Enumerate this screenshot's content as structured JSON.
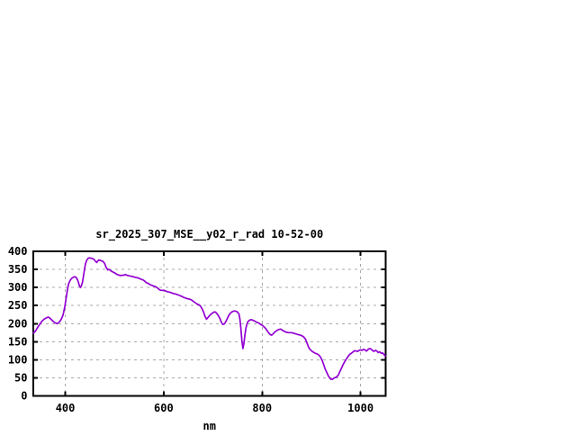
{
  "window": {
    "background": "#ffffff"
  },
  "chart_data": {
    "type": "line",
    "title": "sr_2025_307_MSE__y02_r_rad 10-52-00",
    "xlabel": "nm",
    "ylabel": "",
    "xlim": [
      335,
      1051
    ],
    "ylim": [
      0,
      400
    ],
    "xticks": [
      400,
      600,
      800,
      1000
    ],
    "yticks": [
      0,
      50,
      100,
      150,
      200,
      250,
      300,
      350,
      400
    ],
    "grid": true,
    "legend_position": "none",
    "colors": {
      "line": "#9400d3",
      "grid": "#a8a8a8",
      "axis": "#000000",
      "text": "#000000",
      "background": "#ffffff"
    },
    "series": [
      {
        "points": [
          [
            335,
            174
          ],
          [
            338,
            177
          ],
          [
            341,
            183
          ],
          [
            344,
            190
          ],
          [
            347,
            196
          ],
          [
            350,
            202
          ],
          [
            353,
            207
          ],
          [
            356,
            211
          ],
          [
            359,
            214
          ],
          [
            362,
            216
          ],
          [
            365,
            218
          ],
          [
            368,
            216
          ],
          [
            371,
            212
          ],
          [
            374,
            208
          ],
          [
            377,
            204
          ],
          [
            380,
            202
          ],
          [
            383,
            200
          ],
          [
            386,
            202
          ],
          [
            389,
            206
          ],
          [
            392,
            213
          ],
          [
            395,
            222
          ],
          [
            397,
            233
          ],
          [
            399,
            247
          ],
          [
            401,
            264
          ],
          [
            403,
            282
          ],
          [
            405,
            299
          ],
          [
            407,
            311
          ],
          [
            410,
            320
          ],
          [
            413,
            325
          ],
          [
            416,
            328
          ],
          [
            419,
            330
          ],
          [
            422,
            328
          ],
          [
            425,
            321
          ],
          [
            427,
            313
          ],
          [
            429,
            303
          ],
          [
            431,
            300
          ],
          [
            433,
            306
          ],
          [
            435,
            315
          ],
          [
            437,
            333
          ],
          [
            439,
            350
          ],
          [
            441,
            365
          ],
          [
            443,
            374
          ],
          [
            445,
            378
          ],
          [
            447,
            381
          ],
          [
            449,
            382
          ],
          [
            451,
            381
          ],
          [
            453,
            381
          ],
          [
            455,
            380
          ],
          [
            457,
            379
          ],
          [
            459,
            377
          ],
          [
            461,
            373
          ],
          [
            464,
            369
          ],
          [
            466,
            373
          ],
          [
            468,
            376
          ],
          [
            471,
            375
          ],
          [
            474,
            373
          ],
          [
            477,
            372
          ],
          [
            480,
            366
          ],
          [
            483,
            356
          ],
          [
            486,
            349
          ],
          [
            489,
            350
          ],
          [
            492,
            347
          ],
          [
            495,
            344
          ],
          [
            498,
            342
          ],
          [
            501,
            340
          ],
          [
            504,
            337
          ],
          [
            507,
            335
          ],
          [
            510,
            334
          ],
          [
            513,
            333
          ],
          [
            516,
            334
          ],
          [
            519,
            334
          ],
          [
            522,
            336
          ],
          [
            525,
            334
          ],
          [
            528,
            333
          ],
          [
            531,
            332
          ],
          [
            534,
            331
          ],
          [
            537,
            330
          ],
          [
            540,
            329
          ],
          [
            543,
            328
          ],
          [
            546,
            327
          ],
          [
            549,
            326
          ],
          [
            552,
            324
          ],
          [
            555,
            322
          ],
          [
            558,
            321
          ],
          [
            561,
            318
          ],
          [
            564,
            314
          ],
          [
            567,
            312
          ],
          [
            570,
            310
          ],
          [
            573,
            307
          ],
          [
            576,
            306
          ],
          [
            579,
            304
          ],
          [
            582,
            303
          ],
          [
            585,
            301
          ],
          [
            588,
            298
          ],
          [
            591,
            294
          ],
          [
            594,
            292
          ],
          [
            597,
            292
          ],
          [
            600,
            292
          ],
          [
            604,
            290
          ],
          [
            608,
            288
          ],
          [
            612,
            287
          ],
          [
            616,
            285
          ],
          [
            620,
            283
          ],
          [
            624,
            282
          ],
          [
            628,
            280
          ],
          [
            632,
            278
          ],
          [
            636,
            276
          ],
          [
            640,
            273
          ],
          [
            644,
            271
          ],
          [
            648,
            269
          ],
          [
            652,
            268
          ],
          [
            656,
            266
          ],
          [
            660,
            262
          ],
          [
            664,
            258
          ],
          [
            668,
            254
          ],
          [
            672,
            252
          ],
          [
            675,
            248
          ],
          [
            678,
            241
          ],
          [
            681,
            232
          ],
          [
            684,
            220
          ],
          [
            687,
            212
          ],
          [
            690,
            217
          ],
          [
            693,
            222
          ],
          [
            696,
            226
          ],
          [
            699,
            229
          ],
          [
            702,
            232
          ],
          [
            705,
            232
          ],
          [
            708,
            228
          ],
          [
            711,
            222
          ],
          [
            714,
            215
          ],
          [
            717,
            204
          ],
          [
            720,
            198
          ],
          [
            723,
            199
          ],
          [
            726,
            205
          ],
          [
            729,
            213
          ],
          [
            732,
            222
          ],
          [
            735,
            228
          ],
          [
            738,
            232
          ],
          [
            741,
            234
          ],
          [
            744,
            235
          ],
          [
            747,
            234
          ],
          [
            750,
            232
          ],
          [
            753,
            226
          ],
          [
            755,
            210
          ],
          [
            757,
            185
          ],
          [
            759,
            152
          ],
          [
            761,
            131
          ],
          [
            763,
            145
          ],
          [
            765,
            168
          ],
          [
            767,
            187
          ],
          [
            769,
            198
          ],
          [
            771,
            205
          ],
          [
            774,
            209
          ],
          [
            777,
            211
          ],
          [
            780,
            210
          ],
          [
            783,
            208
          ],
          [
            786,
            206
          ],
          [
            789,
            204
          ],
          [
            792,
            202
          ],
          [
            795,
            200
          ],
          [
            798,
            197
          ],
          [
            801,
            195
          ],
          [
            804,
            191
          ],
          [
            807,
            187
          ],
          [
            810,
            181
          ],
          [
            813,
            175
          ],
          [
            816,
            170
          ],
          [
            819,
            168
          ],
          [
            822,
            171
          ],
          [
            825,
            176
          ],
          [
            828,
            179
          ],
          [
            831,
            182
          ],
          [
            834,
            184
          ],
          [
            838,
            185
          ],
          [
            842,
            181
          ],
          [
            846,
            178
          ],
          [
            850,
            176
          ],
          [
            855,
            175
          ],
          [
            860,
            175
          ],
          [
            865,
            173
          ],
          [
            870,
            171
          ],
          [
            875,
            169
          ],
          [
            880,
            167
          ],
          [
            884,
            164
          ],
          [
            888,
            157
          ],
          [
            891,
            147
          ],
          [
            894,
            136
          ],
          [
            897,
            129
          ],
          [
            900,
            125
          ],
          [
            904,
            121
          ],
          [
            908,
            118
          ],
          [
            912,
            116
          ],
          [
            916,
            112
          ],
          [
            919,
            107
          ],
          [
            922,
            98
          ],
          [
            925,
            87
          ],
          [
            928,
            75
          ],
          [
            931,
            66
          ],
          [
            934,
            57
          ],
          [
            937,
            50
          ],
          [
            940,
            46
          ],
          [
            943,
            46
          ],
          [
            946,
            49
          ],
          [
            949,
            51
          ],
          [
            952,
            53
          ],
          [
            955,
            58
          ],
          [
            958,
            67
          ],
          [
            961,
            76
          ],
          [
            964,
            85
          ],
          [
            967,
            93
          ],
          [
            970,
            100
          ],
          [
            973,
            106
          ],
          [
            976,
            112
          ],
          [
            979,
            116
          ],
          [
            982,
            119
          ],
          [
            985,
            122
          ],
          [
            988,
            125
          ],
          [
            991,
            124
          ],
          [
            994,
            123
          ],
          [
            997,
            126
          ],
          [
            1000,
            127
          ],
          [
            1003,
            126
          ],
          [
            1006,
            129
          ],
          [
            1009,
            127
          ],
          [
            1012,
            124
          ],
          [
            1015,
            128
          ],
          [
            1018,
            131
          ],
          [
            1021,
            130
          ],
          [
            1024,
            126
          ],
          [
            1027,
            123
          ],
          [
            1030,
            126
          ],
          [
            1033,
            124
          ],
          [
            1036,
            120
          ],
          [
            1039,
            122
          ],
          [
            1042,
            118
          ],
          [
            1045,
            119
          ],
          [
            1048,
            114
          ],
          [
            1050,
            110
          ]
        ]
      }
    ]
  }
}
